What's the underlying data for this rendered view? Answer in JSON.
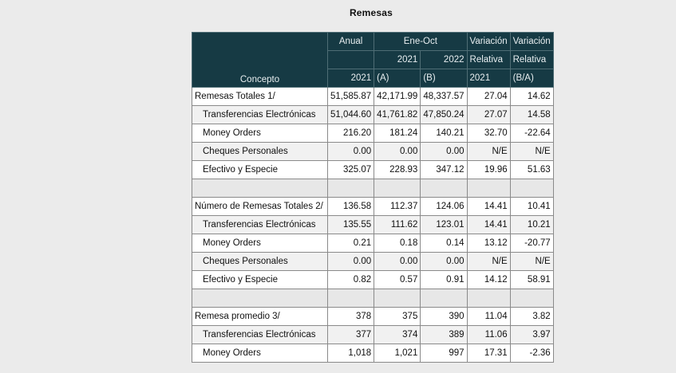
{
  "title": "Remesas",
  "header": {
    "concepto": "Concepto",
    "anual_top": "Anual",
    "anual_bottom": "2021",
    "ene_oct": "Ene-Oct",
    "col_2021": "2021",
    "col_2022": "2022",
    "col_a": "(A)",
    "col_b": "(B)",
    "var1_top": "Variación",
    "var1_mid": "Relativa",
    "var1_bottom": "2021",
    "var2_top": "Variación",
    "var2_mid": "Relativa",
    "var2_bottom": "(B/A)"
  },
  "rows": [
    {
      "label": "Remesas Totales 1/",
      "anual": "51,585.87",
      "a": "42,171.99",
      "b": "48,337.57",
      "v1": "27.04",
      "v2": "14.62"
    },
    {
      "label": "Transferencias Electrónicas",
      "anual": "51,044.60",
      "a": "41,761.82",
      "b": "47,850.24",
      "v1": "27.07",
      "v2": "14.58"
    },
    {
      "label": "Money Orders",
      "anual": "216.20",
      "a": "181.24",
      "b": "140.21",
      "v1": "32.70",
      "v2": "-22.64"
    },
    {
      "label": "Cheques Personales",
      "anual": "0.00",
      "a": "0.00",
      "b": "0.00",
      "v1": "N/E",
      "v2": "N/E"
    },
    {
      "label": "Efectivo y Especie",
      "anual": "325.07",
      "a": "228.93",
      "b": "347.12",
      "v1": "19.96",
      "v2": "51.63"
    },
    {
      "label": "Número de Remesas Totales 2/",
      "anual": "136.58",
      "a": "112.37",
      "b": "124.06",
      "v1": "14.41",
      "v2": "10.41"
    },
    {
      "label": "Transferencias Electrónicas",
      "anual": "135.55",
      "a": "111.62",
      "b": "123.01",
      "v1": "14.41",
      "v2": "10.21"
    },
    {
      "label": "Money Orders",
      "anual": "0.21",
      "a": "0.18",
      "b": "0.14",
      "v1": "13.12",
      "v2": "-20.77"
    },
    {
      "label": "Cheques Personales",
      "anual": "0.00",
      "a": "0.00",
      "b": "0.00",
      "v1": "N/E",
      "v2": "N/E"
    },
    {
      "label": "Efectivo y Especie",
      "anual": "0.82",
      "a": "0.57",
      "b": "0.91",
      "v1": "14.12",
      "v2": "58.91"
    },
    {
      "label": "Remesa promedio 3/",
      "anual": "378",
      "a": "375",
      "b": "390",
      "v1": "11.04",
      "v2": "3.82"
    },
    {
      "label": "Transferencias Electrónicas",
      "anual": "377",
      "a": "374",
      "b": "389",
      "v1": "11.06",
      "v2": "3.97"
    },
    {
      "label": "Money Orders",
      "anual": "1,018",
      "a": "1,021",
      "b": "997",
      "v1": "17.31",
      "v2": "-2.36"
    }
  ]
}
